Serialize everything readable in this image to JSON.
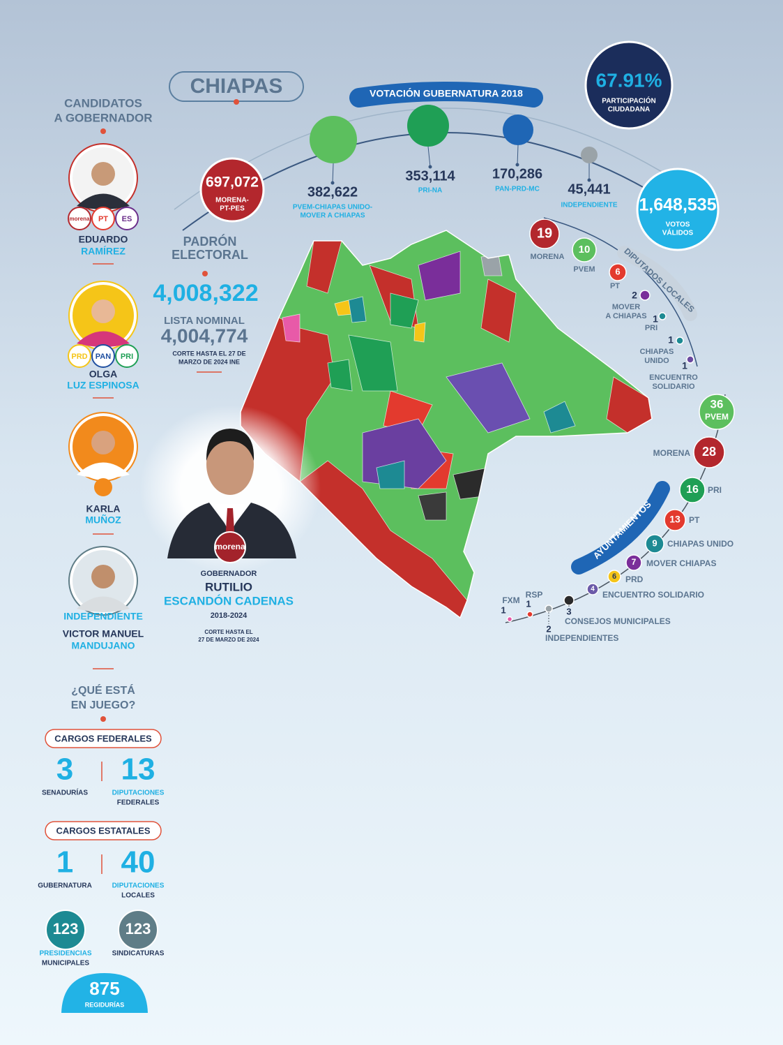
{
  "header": {
    "title": "CHIAPAS"
  },
  "candidates": {
    "heading": [
      "CANDIDATOS",
      "A GOBERNADOR"
    ],
    "people": [
      {
        "logos": [
          "morena",
          "PT",
          "ES"
        ],
        "first_name": "EDUARDO",
        "last_name": "RAMÍREZ"
      },
      {
        "logos": [
          "PRD",
          "PAN",
          "PRI"
        ],
        "first_name": "OLGA",
        "last_name": "LUZ ESPINOSA"
      },
      {
        "first_name": "KARLA",
        "last_name": "MUÑOZ"
      },
      {
        "affiliation": "INDEPENDIENTE",
        "first_name": "VICTOR MANUEL",
        "last_name": "MANDUJANO"
      }
    ]
  },
  "padron": {
    "heading": [
      "PADRÓN",
      "ELECTORAL"
    ],
    "value": "4,008,322",
    "nominal_label": "LISTA NOMINAL",
    "nominal_value": "4,004,774",
    "note": [
      "CORTE HASTA EL 27 DE",
      "MARZO DE 2024 INE"
    ]
  },
  "governor": {
    "party": "morena",
    "role": "GOBERNADOR",
    "first_name": "RUTILIO",
    "last_name": "ESCANDÓN CADENAS",
    "term": "2018-2024",
    "note": [
      "CORTE HASTA EL",
      "27 DE MARZO DE 2024"
    ]
  },
  "election_2018": {
    "title": "VOTACIÓN GUBERNATURA 2018",
    "participation": {
      "value": "67.91%",
      "label": [
        "PARTICIPACIÓN",
        "CIUDADANA"
      ]
    },
    "results": [
      {
        "votes": "697,072",
        "party": [
          "MORENA-",
          "PT-PES"
        ]
      },
      {
        "votes": "382,622",
        "party": [
          "PVEM-CHIAPAS UNIDO-",
          "MOVER A CHIAPAS"
        ]
      },
      {
        "votes": "353,114",
        "party": [
          "PRI-NA"
        ]
      },
      {
        "votes": "170,286",
        "party": [
          "PAN-PRD-MC"
        ]
      },
      {
        "votes": "45,441",
        "party": [
          "INDEPENDIENTE"
        ]
      }
    ],
    "valid_votes": {
      "value": "1,648,535",
      "label": [
        "VOTOS",
        "VÁLIDOS"
      ]
    }
  },
  "local_deputies": {
    "title": "DIPUTADOS LOCALES",
    "seats": [
      {
        "count": "19",
        "party": [
          "MORENA"
        ]
      },
      {
        "count": "10",
        "party": [
          "PVEM"
        ]
      },
      {
        "count": "6",
        "party": [
          "PT"
        ]
      },
      {
        "count": "2",
        "party": [
          "MOVER",
          "A CHIAPAS"
        ]
      },
      {
        "count": "1",
        "party": [
          "PRI"
        ]
      },
      {
        "count": "1",
        "party": [
          "CHIAPAS",
          "UNIDO"
        ]
      },
      {
        "count": "1",
        "party": [
          "ENCUENTRO",
          "SOLIDARIO"
        ]
      }
    ]
  },
  "city_councils": {
    "title": "AYUNTAMIENTOS",
    "seats": [
      {
        "count": "36",
        "party": "PVEM"
      },
      {
        "count": "28",
        "party": "MORENA"
      },
      {
        "count": "16",
        "party": "PRI"
      },
      {
        "count": "13",
        "party": "PT"
      },
      {
        "count": "9",
        "party": "CHIAPAS UNIDO"
      },
      {
        "count": "7",
        "party": "MOVER CHIAPAS"
      },
      {
        "count": "6",
        "party": "PRD"
      },
      {
        "count": "4",
        "party": "ENCUENTRO SOLIDARIO"
      },
      {
        "count": "3",
        "party": "CONSEJOS MUNICIPALES"
      },
      {
        "count": "2",
        "party": "INDEPENDIENTES"
      },
      {
        "count": "1",
        "party": "RSP"
      },
      {
        "count": "1",
        "party": "FXM"
      }
    ]
  },
  "at_stake": {
    "heading": [
      "¿QUÉ ESTÁ",
      "EN JUEGO?"
    ],
    "federal": {
      "title": "CARGOS FEDERALES",
      "items": [
        {
          "value": "3",
          "label": [
            "SENADURÍAS"
          ]
        },
        {
          "value": "13",
          "label": [
            "DIPUTACIONES",
            "FEDERALES"
          ]
        }
      ]
    },
    "state": {
      "title": "CARGOS ESTATALES",
      "items": [
        {
          "value": "1",
          "label": [
            "GUBERNATURA"
          ]
        },
        {
          "value": "40",
          "label": [
            "DIPUTACIONES",
            "LOCALES"
          ]
        }
      ]
    },
    "municipal": [
      {
        "value": "123",
        "label": [
          "PRESIDENCIAS",
          "MUNICIPALES"
        ]
      },
      {
        "value": "123",
        "label": [
          "SINDICATURAS"
        ]
      },
      {
        "value": "875",
        "label": [
          "REGIDURÍAS"
        ]
      }
    ]
  }
}
